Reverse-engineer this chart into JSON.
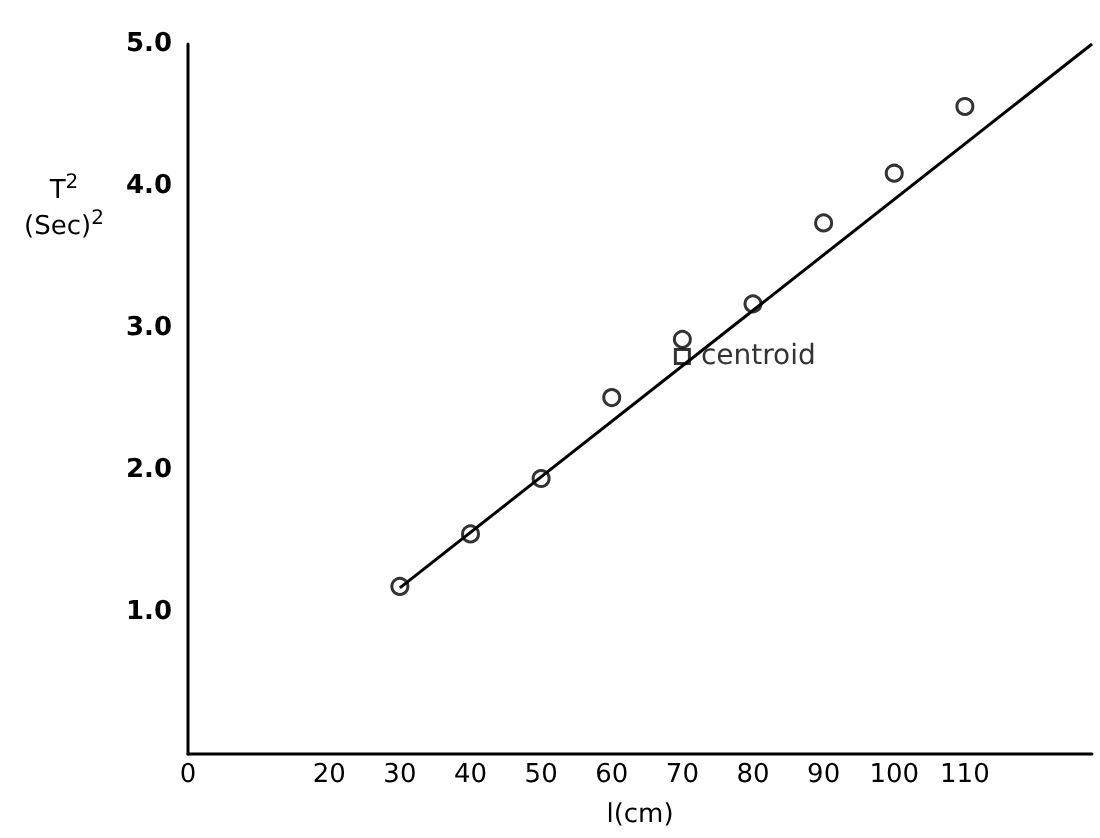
{
  "chart_data": {
    "type": "scatter",
    "xlabel": "l(cm)",
    "ylabel": "T$^{2}$\n(Sec)$^{2}$",
    "xlim": [
      0,
      128
    ],
    "xticks": [
      0,
      20,
      30,
      40,
      50,
      60,
      70,
      80,
      90,
      100,
      110
    ],
    "ylim": [
      0,
      5
    ],
    "yticks": [
      {
        "value": 1,
        "label": "1.0"
      },
      {
        "value": 2,
        "label": "2.0"
      },
      {
        "value": 3,
        "label": "3.0"
      },
      {
        "value": 4,
        "label": "4.0"
      },
      {
        "value": 5,
        "label": "5.0"
      }
    ],
    "grid": false,
    "legend": false,
    "series": [
      {
        "marker": "circle",
        "color": "#000000",
        "x": [
          30,
          40,
          50,
          60,
          70,
          80,
          90,
          100,
          110
        ],
        "values": [
          1.18,
          1.55,
          1.94,
          2.51,
          2.92,
          3.17,
          3.74,
          4.09,
          4.56
        ]
      },
      {
        "type": "line",
        "marker": "none",
        "color": "#000000",
        "x": [
          30,
          128
        ],
        "values": [
          1.17,
          5.0
        ]
      },
      {
        "type": "scatter",
        "name": "centroid",
        "marker": "square",
        "color": "#000000",
        "x": [
          70
        ],
        "values": [
          2.8
        ]
      }
    ]
  }
}
